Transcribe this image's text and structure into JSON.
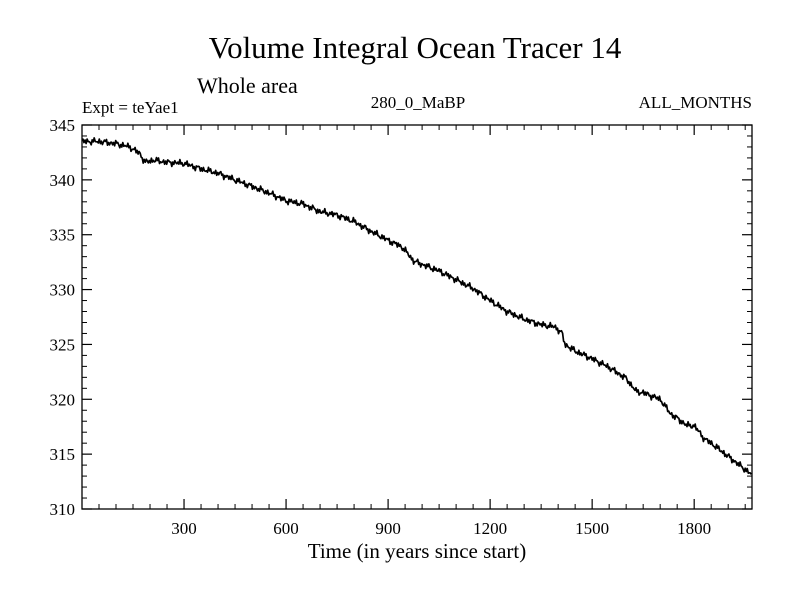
{
  "chart_data": {
    "type": "line",
    "title": "Volume Integral Ocean Tracer 14",
    "subtitle": "Whole area",
    "experiment_label": "Expt = teYae1",
    "center_label": "280_0_MaBP",
    "right_label": "ALL_MONTHS",
    "xlabel": "Time (in years since start)",
    "ylabel": "",
    "xlim": [
      0,
      1970
    ],
    "ylim": [
      310,
      345
    ],
    "x_ticks": [
      300,
      600,
      900,
      1200,
      1500,
      1800
    ],
    "y_ticks": [
      310,
      315,
      320,
      325,
      330,
      335,
      340,
      345
    ],
    "grid": false,
    "line_color": "#000000",
    "series": [
      {
        "name": "Ocean Tracer 14",
        "x": [
          0,
          50,
          100,
          140,
          170,
          185,
          210,
          250,
          300,
          350,
          400,
          450,
          500,
          550,
          600,
          650,
          700,
          750,
          800,
          850,
          900,
          940,
          960,
          975,
          1000,
          1050,
          1100,
          1150,
          1200,
          1250,
          1300,
          1350,
          1390,
          1410,
          1420,
          1450,
          1500,
          1550,
          1600,
          1630,
          1650,
          1700,
          1730,
          1780,
          1800,
          1830,
          1850,
          1900,
          1950,
          1970
        ],
        "values": [
          343.5,
          343.5,
          343.3,
          343.0,
          342.4,
          341.6,
          341.8,
          341.6,
          341.5,
          341.0,
          340.6,
          340.0,
          339.4,
          338.8,
          338.1,
          337.8,
          337.1,
          336.8,
          336.2,
          335.3,
          334.5,
          333.9,
          333.2,
          332.6,
          332.3,
          331.7,
          330.9,
          330.1,
          329.0,
          328.0,
          327.3,
          326.8,
          326.6,
          326.1,
          325.0,
          324.4,
          323.7,
          322.9,
          321.9,
          320.7,
          320.6,
          320.0,
          318.7,
          317.6,
          317.6,
          316.4,
          316.0,
          314.8,
          313.6,
          313.1
        ]
      }
    ]
  }
}
